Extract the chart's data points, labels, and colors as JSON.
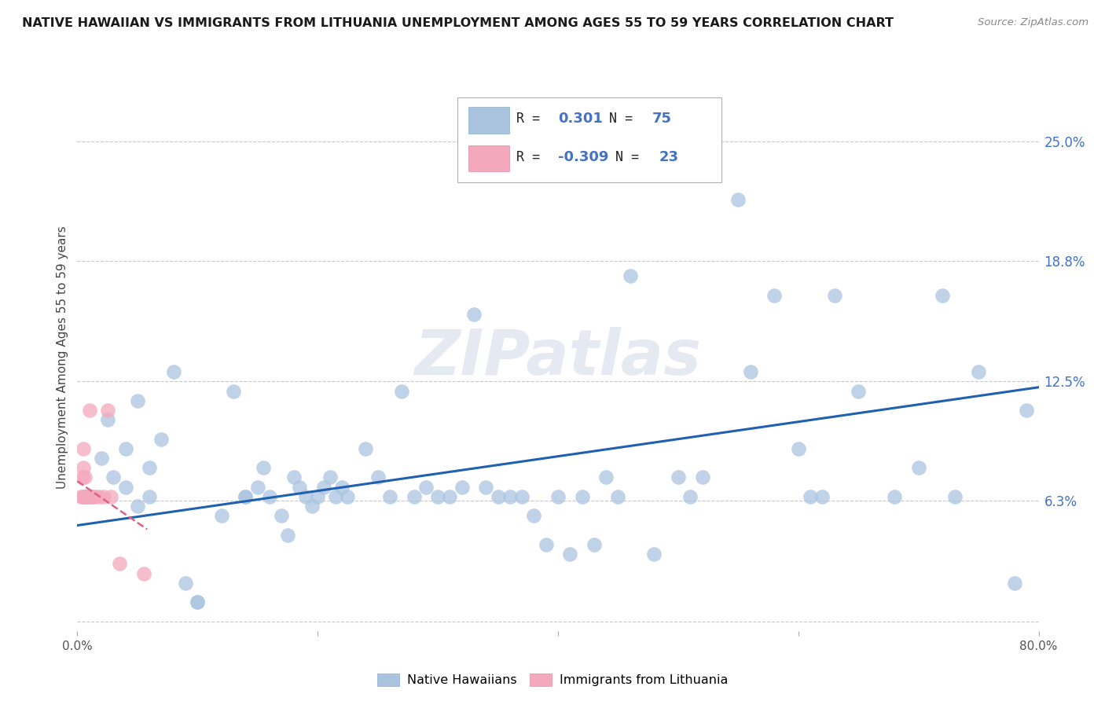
{
  "title": "NATIVE HAWAIIAN VS IMMIGRANTS FROM LITHUANIA UNEMPLOYMENT AMONG AGES 55 TO 59 YEARS CORRELATION CHART",
  "source": "Source: ZipAtlas.com",
  "ylabel": "Unemployment Among Ages 55 to 59 years",
  "xlim": [
    0.0,
    0.8
  ],
  "ylim": [
    -0.005,
    0.28
  ],
  "x_ticks": [
    0.0,
    0.2,
    0.4,
    0.6,
    0.8
  ],
  "x_tick_labels": [
    "0.0%",
    "",
    "",
    "",
    "80.0%"
  ],
  "y_ticks_right": [
    0.0,
    0.063,
    0.125,
    0.188,
    0.25
  ],
  "y_tick_labels_right": [
    "",
    "6.3%",
    "12.5%",
    "18.8%",
    "25.0%"
  ],
  "blue_color": "#aac4e0",
  "pink_color": "#f4a8bc",
  "trendline_blue_color": "#2060b0",
  "trendline_pink_color": "#e06080",
  "blue_scatter_x": [
    0.02,
    0.025,
    0.03,
    0.04,
    0.04,
    0.05,
    0.05,
    0.06,
    0.06,
    0.07,
    0.08,
    0.09,
    0.1,
    0.1,
    0.12,
    0.13,
    0.14,
    0.14,
    0.15,
    0.155,
    0.16,
    0.17,
    0.175,
    0.18,
    0.185,
    0.19,
    0.195,
    0.2,
    0.205,
    0.21,
    0.215,
    0.22,
    0.225,
    0.24,
    0.25,
    0.26,
    0.27,
    0.28,
    0.29,
    0.3,
    0.31,
    0.32,
    0.33,
    0.34,
    0.35,
    0.36,
    0.37,
    0.38,
    0.39,
    0.4,
    0.41,
    0.42,
    0.43,
    0.44,
    0.45,
    0.46,
    0.48,
    0.5,
    0.51,
    0.52,
    0.55,
    0.56,
    0.58,
    0.6,
    0.61,
    0.62,
    0.63,
    0.65,
    0.68,
    0.7,
    0.72,
    0.73,
    0.75,
    0.78,
    0.79
  ],
  "blue_scatter_y": [
    0.085,
    0.105,
    0.075,
    0.07,
    0.09,
    0.115,
    0.06,
    0.065,
    0.08,
    0.095,
    0.13,
    0.02,
    0.01,
    0.01,
    0.055,
    0.12,
    0.065,
    0.065,
    0.07,
    0.08,
    0.065,
    0.055,
    0.045,
    0.075,
    0.07,
    0.065,
    0.06,
    0.065,
    0.07,
    0.075,
    0.065,
    0.07,
    0.065,
    0.09,
    0.075,
    0.065,
    0.12,
    0.065,
    0.07,
    0.065,
    0.065,
    0.07,
    0.16,
    0.07,
    0.065,
    0.065,
    0.065,
    0.055,
    0.04,
    0.065,
    0.035,
    0.065,
    0.04,
    0.075,
    0.065,
    0.18,
    0.035,
    0.075,
    0.065,
    0.075,
    0.22,
    0.13,
    0.17,
    0.09,
    0.065,
    0.065,
    0.17,
    0.12,
    0.065,
    0.08,
    0.17,
    0.065,
    0.13,
    0.02,
    0.11
  ],
  "pink_scatter_x": [
    0.003,
    0.004,
    0.004,
    0.005,
    0.005,
    0.005,
    0.006,
    0.006,
    0.007,
    0.007,
    0.008,
    0.009,
    0.01,
    0.01,
    0.012,
    0.013,
    0.015,
    0.018,
    0.022,
    0.025,
    0.028,
    0.035,
    0.055
  ],
  "pink_scatter_y": [
    0.065,
    0.065,
    0.075,
    0.065,
    0.08,
    0.09,
    0.065,
    0.075,
    0.065,
    0.065,
    0.065,
    0.065,
    0.065,
    0.11,
    0.065,
    0.065,
    0.065,
    0.065,
    0.065,
    0.11,
    0.065,
    0.03,
    0.025
  ],
  "blue_trend_x": [
    0.0,
    0.8
  ],
  "blue_trend_y": [
    0.05,
    0.122
  ],
  "pink_trend_x": [
    0.0,
    0.058
  ],
  "pink_trend_y": [
    0.073,
    0.048
  ],
  "watermark": "ZIPatlas",
  "background_color": "#ffffff",
  "grid_color": "#c8c8c8"
}
